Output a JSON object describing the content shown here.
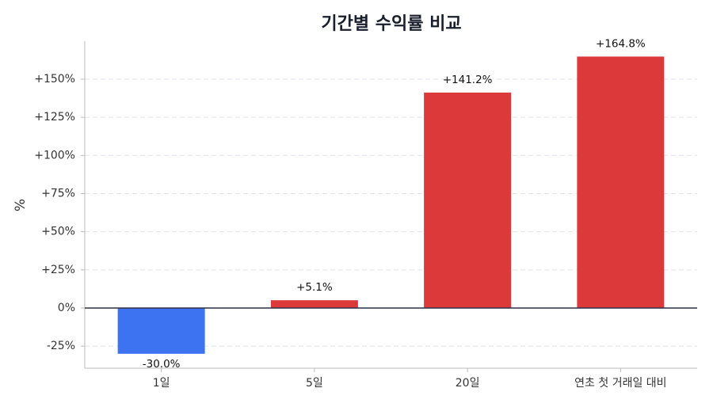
{
  "chart_data": {
    "type": "bar",
    "title": "기간별 수익률 비교",
    "xlabel": "",
    "ylabel": "%",
    "categories": [
      "1일",
      "5일",
      "20일",
      "연초 첫 거래일 대비"
    ],
    "values": [
      -30.0,
      5.1,
      141.2,
      164.8
    ],
    "data_labels": [
      "-30.0%",
      "+5.1%",
      "+141.2%",
      "+164.8%"
    ],
    "ylim": [
      -40,
      175
    ],
    "yticks": [
      -25,
      0,
      25,
      50,
      75,
      100,
      125,
      150
    ],
    "ytick_labels": [
      "-25%",
      "0%",
      "+25%",
      "+50%",
      "+75%",
      "+100%",
      "+125%",
      "+150%"
    ],
    "colors": {
      "positive": "#dc3a3a",
      "negative": "#3d72f0"
    },
    "grid": true,
    "legend": "none"
  }
}
